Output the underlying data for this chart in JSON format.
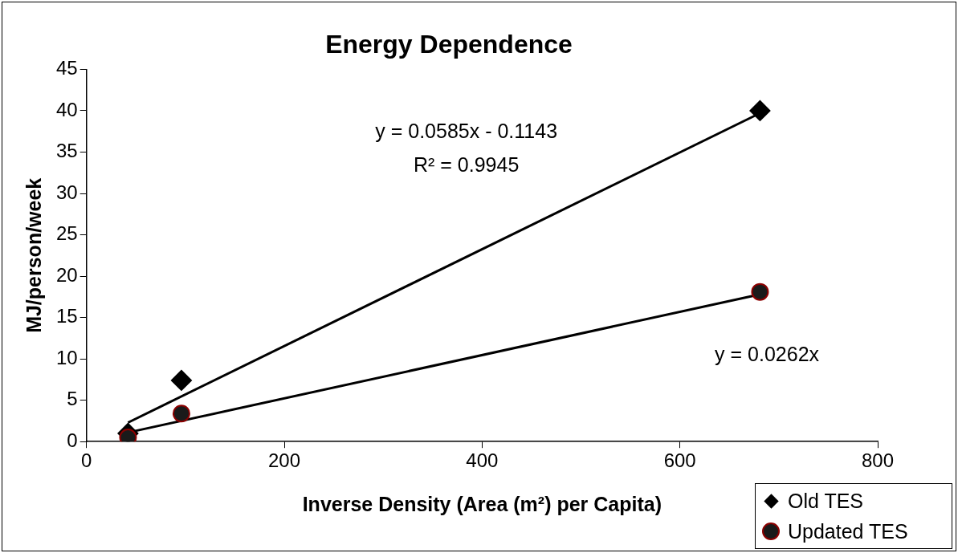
{
  "chart_data": {
    "type": "scatter",
    "title": "Energy Dependence",
    "xlabel": "Inverse Density (Area (m²) per Capita)",
    "ylabel": "MJ/person/week",
    "xlim": [
      0,
      800
    ],
    "xticks": [
      0,
      200,
      400,
      600,
      800
    ],
    "ylim": [
      0,
      45
    ],
    "yticks": [
      0,
      5,
      10,
      15,
      20,
      25,
      30,
      35,
      40,
      45
    ],
    "grid": false,
    "legend": "bottom right",
    "series": [
      {
        "name": "Old TES",
        "marker": "diamond",
        "color": "#000000",
        "x": [
          42,
          96,
          681
        ],
        "values": [
          1.0,
          7.4,
          40.0
        ]
      },
      {
        "name": "Updated TES",
        "marker": "circle",
        "color": "#1a1a1a",
        "x": [
          42,
          96,
          681
        ],
        "values": [
          0.5,
          3.4,
          18.1
        ]
      },
      {
        "type": "line",
        "marker": "none",
        "color": "#000000",
        "x": [
          42,
          681
        ],
        "values": [
          2.3,
          39.7
        ]
      },
      {
        "type": "line",
        "marker": "none",
        "color": "#000000",
        "x": [
          42,
          681
        ],
        "values": [
          1.1,
          17.8
        ]
      }
    ],
    "annotations": [
      "y = 0.0585x - 0.1143",
      "R² = 0.9945",
      "y = 0.0262x"
    ]
  }
}
